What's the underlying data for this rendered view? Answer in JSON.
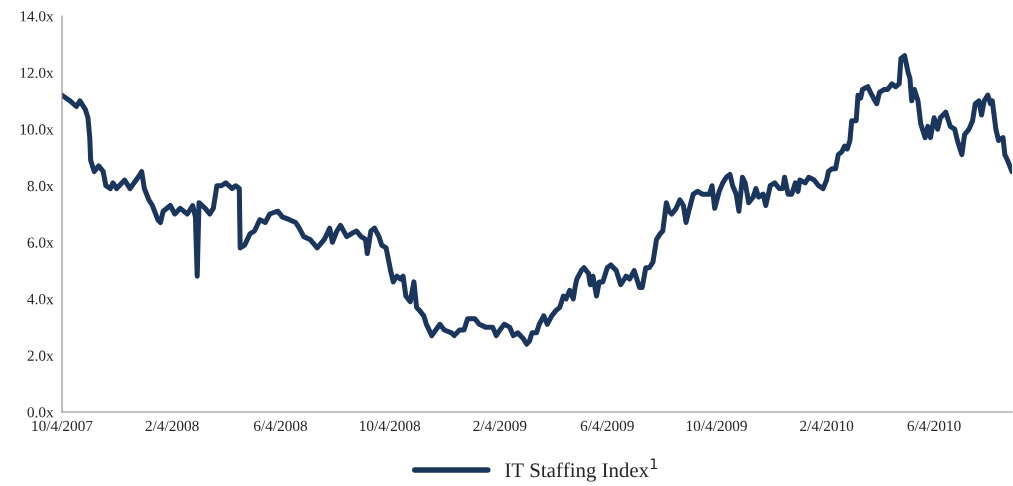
{
  "chart_data": {
    "type": "line",
    "legend": "bottom",
    "grid": false,
    "marker": "none",
    "line_style": "solid",
    "xlim": [
      "2007-10-04",
      "2010-08-30"
    ],
    "xticks": [
      {
        "value": "2007-10-04",
        "label": "10/4/2007"
      },
      {
        "value": "2008-02-04",
        "label": "2/4/2008"
      },
      {
        "value": "2008-06-04",
        "label": "6/4/2008"
      },
      {
        "value": "2008-10-04",
        "label": "10/4/2008"
      },
      {
        "value": "2009-02-04",
        "label": "2/4/2009"
      },
      {
        "value": "2009-06-04",
        "label": "6/4/2009"
      },
      {
        "value": "2009-10-04",
        "label": "10/4/2009"
      },
      {
        "value": "2010-02-04",
        "label": "2/4/2010"
      },
      {
        "value": "2010-06-04",
        "label": "6/4/2010"
      }
    ],
    "ylim": [
      0,
      14
    ],
    "yticks": [
      {
        "value": 0,
        "label": "0.0x"
      },
      {
        "value": 2,
        "label": "2.0x"
      },
      {
        "value": 4,
        "label": "4.0x"
      },
      {
        "value": 6,
        "label": "6.0x"
      },
      {
        "value": 8,
        "label": "8.0x"
      },
      {
        "value": 10,
        "label": "10.0x"
      },
      {
        "value": 12,
        "label": "12.0x"
      },
      {
        "value": 14,
        "label": "14.0x"
      }
    ],
    "series": [
      {
        "name": "IT Staffing Index$^{1}$",
        "color": "#1b365d",
        "x": [
          "2007-10-04",
          "2007-10-13",
          "2007-10-20",
          "2007-10-24",
          "2007-10-30",
          "2007-11-02",
          "2007-11-04",
          "2007-11-05",
          "2007-11-09",
          "2007-11-14",
          "2007-11-19",
          "2007-11-22",
          "2007-11-27",
          "2007-11-30",
          "2007-12-04",
          "2007-12-13",
          "2007-12-19",
          "2007-12-28",
          "2008-01-01",
          "2008-01-04",
          "2008-01-09",
          "2008-01-13",
          "2008-01-19",
          "2008-01-22",
          "2008-01-25",
          "2008-02-02",
          "2008-02-07",
          "2008-02-13",
          "2008-02-21",
          "2008-02-27",
          "2008-03-01",
          "2008-03-03",
          "2008-03-05",
          "2008-03-12",
          "2008-03-17",
          "2008-03-21",
          "2008-03-25",
          "2008-03-30",
          "2008-04-04",
          "2008-04-11",
          "2008-04-15",
          "2008-04-19",
          "2008-04-20",
          "2008-04-25",
          "2008-05-01",
          "2008-05-06",
          "2008-05-12",
          "2008-05-18",
          "2008-05-23",
          "2008-06-01",
          "2008-06-06",
          "2008-06-14",
          "2008-06-21",
          "2008-06-25",
          "2008-06-30",
          "2008-07-07",
          "2008-07-15",
          "2008-07-23",
          "2008-07-29",
          "2008-08-01",
          "2008-08-06",
          "2008-08-10",
          "2008-08-17",
          "2008-08-22",
          "2008-08-28",
          "2008-09-02",
          "2008-09-07",
          "2008-09-09",
          "2008-09-13",
          "2008-09-17",
          "2008-09-22",
          "2008-09-25",
          "2008-09-30",
          "2008-10-05",
          "2008-10-08",
          "2008-10-12",
          "2008-10-16",
          "2008-10-19",
          "2008-10-22",
          "2008-10-27",
          "2008-10-31",
          "2008-11-03",
          "2008-11-06",
          "2008-11-11",
          "2008-11-14",
          "2008-11-20",
          "2008-11-29",
          "2008-12-04",
          "2008-12-12",
          "2008-12-15",
          "2008-12-21",
          "2008-12-26",
          "2008-12-30",
          "2009-01-07",
          "2009-01-12",
          "2009-01-19",
          "2009-01-27",
          "2009-01-31",
          "2009-02-04",
          "2009-02-09",
          "2009-02-15",
          "2009-02-19",
          "2009-02-24",
          "2009-03-02",
          "2009-03-06",
          "2009-03-09",
          "2009-03-12",
          "2009-03-17",
          "2009-03-20",
          "2009-03-25",
          "2009-03-29",
          "2009-04-03",
          "2009-04-08",
          "2009-04-12",
          "2009-04-16",
          "2009-04-19",
          "2009-04-23",
          "2009-04-27",
          "2009-04-29",
          "2009-05-01",
          "2009-05-06",
          "2009-05-09",
          "2009-05-14",
          "2009-05-16",
          "2009-05-19",
          "2009-05-23",
          "2009-05-26",
          "2009-05-30",
          "2009-06-04",
          "2009-06-08",
          "2009-06-14",
          "2009-06-19",
          "2009-06-25",
          "2009-06-29",
          "2009-07-04",
          "2009-07-10",
          "2009-07-13",
          "2009-07-17",
          "2009-07-21",
          "2009-07-25",
          "2009-07-29",
          "2009-08-02",
          "2009-08-05",
          "2009-08-09",
          "2009-08-12",
          "2009-08-15",
          "2009-08-20",
          "2009-08-24",
          "2009-08-28",
          "2009-08-31",
          "2009-09-03",
          "2009-09-08",
          "2009-09-13",
          "2009-09-18",
          "2009-09-26",
          "2009-09-29",
          "2009-10-02",
          "2009-10-07",
          "2009-10-11",
          "2009-10-15",
          "2009-10-19",
          "2009-10-22",
          "2009-10-26",
          "2009-10-29",
          "2009-11-02",
          "2009-11-05",
          "2009-11-09",
          "2009-11-14",
          "2009-11-17",
          "2009-11-20",
          "2009-11-25",
          "2009-11-28",
          "2009-12-03",
          "2009-12-08",
          "2009-12-13",
          "2009-12-17",
          "2009-12-19",
          "2009-12-23",
          "2009-12-27",
          "2009-12-31",
          "2010-01-03",
          "2010-01-05",
          "2010-01-11",
          "2010-01-15",
          "2010-01-21",
          "2010-01-26",
          "2010-01-31",
          "2010-02-04",
          "2010-02-06",
          "2010-02-10",
          "2010-02-14",
          "2010-02-17",
          "2010-02-21",
          "2010-02-24",
          "2010-02-27",
          "2010-03-02",
          "2010-03-04",
          "2010-03-09",
          "2010-03-11",
          "2010-03-14",
          "2010-03-16",
          "2010-03-22",
          "2010-03-25",
          "2010-03-30",
          "2010-04-01",
          "2010-04-04",
          "2010-04-09",
          "2010-04-13",
          "2010-04-18",
          "2010-04-22",
          "2010-04-26",
          "2010-04-28",
          "2010-05-02",
          "2010-05-06",
          "2010-05-08",
          "2010-05-10",
          "2010-05-13",
          "2010-05-17",
          "2010-05-20",
          "2010-05-22",
          "2010-05-25",
          "2010-05-28",
          "2010-05-31",
          "2010-06-04",
          "2010-06-08",
          "2010-06-11",
          "2010-06-17",
          "2010-06-22",
          "2010-06-27",
          "2010-06-30",
          "2010-07-05",
          "2010-07-08",
          "2010-07-13",
          "2010-07-17",
          "2010-07-20",
          "2010-07-24",
          "2010-07-27",
          "2010-07-30",
          "2010-08-03",
          "2010-08-06",
          "2010-08-08",
          "2010-08-12",
          "2010-08-15",
          "2010-08-20",
          "2010-08-22",
          "2010-08-25",
          "2010-08-30"
        ],
        "values": [
          11.2,
          11.0,
          10.8,
          11.0,
          10.7,
          10.4,
          9.7,
          8.9,
          8.5,
          8.7,
          8.5,
          8.0,
          7.9,
          8.1,
          7.9,
          8.2,
          7.9,
          8.3,
          8.5,
          7.9,
          7.5,
          7.3,
          6.8,
          6.7,
          7.1,
          7.3,
          7.0,
          7.2,
          7.0,
          7.3,
          6.9,
          4.8,
          7.4,
          7.2,
          7.0,
          7.2,
          8.0,
          8.0,
          8.1,
          7.9,
          8.0,
          7.9,
          5.8,
          5.9,
          6.3,
          6.4,
          6.8,
          6.7,
          7.0,
          7.1,
          6.9,
          6.8,
          6.7,
          6.5,
          6.2,
          6.1,
          5.8,
          6.1,
          6.5,
          6.0,
          6.4,
          6.6,
          6.2,
          6.3,
          6.4,
          6.2,
          6.1,
          5.6,
          6.4,
          6.5,
          6.2,
          5.9,
          5.8,
          5.0,
          4.6,
          4.8,
          4.7,
          4.8,
          4.1,
          3.9,
          4.6,
          3.7,
          3.6,
          3.4,
          3.1,
          2.7,
          3.1,
          2.9,
          2.8,
          2.7,
          2.9,
          2.9,
          3.3,
          3.3,
          3.1,
          3.0,
          3.0,
          2.7,
          2.9,
          3.1,
          3.0,
          2.7,
          2.8,
          2.6,
          2.4,
          2.5,
          2.8,
          2.8,
          3.1,
          3.4,
          3.1,
          3.4,
          3.6,
          3.7,
          4.1,
          4.0,
          4.3,
          4.0,
          4.4,
          4.7,
          5.0,
          5.1,
          4.9,
          4.5,
          4.8,
          4.1,
          4.6,
          4.6,
          5.1,
          5.2,
          5.0,
          4.5,
          4.8,
          4.7,
          5.0,
          4.4,
          4.4,
          5.1,
          5.1,
          5.3,
          6.1,
          6.3,
          6.4,
          7.4,
          7.1,
          7.0,
          7.2,
          7.5,
          7.3,
          6.7,
          7.1,
          7.7,
          7.8,
          7.7,
          7.7,
          8.0,
          7.2,
          7.8,
          8.1,
          8.3,
          8.4,
          8.0,
          7.7,
          7.1,
          8.3,
          8.1,
          7.4,
          7.6,
          7.9,
          7.6,
          7.7,
          7.3,
          8.0,
          8.1,
          7.9,
          7.9,
          8.3,
          7.7,
          7.7,
          8.1,
          7.8,
          8.2,
          8.1,
          8.3,
          8.2,
          8.0,
          7.9,
          8.2,
          8.5,
          8.6,
          8.6,
          9.1,
          9.2,
          9.4,
          9.3,
          9.6,
          10.3,
          10.3,
          11.2,
          11.1,
          11.4,
          11.5,
          11.3,
          11.0,
          10.9,
          11.3,
          11.4,
          11.4,
          11.6,
          11.5,
          11.6,
          12.5,
          12.6,
          12.0,
          11.8,
          11.0,
          11.4,
          11.0,
          10.2,
          10.0,
          9.7,
          10.1,
          9.7,
          10.4,
          10.0,
          10.4,
          10.6,
          10.1,
          10.0,
          9.6,
          9.1,
          9.8,
          10.0,
          10.3,
          10.9,
          11.0,
          10.5,
          11.0,
          11.2,
          10.9,
          11.0,
          10.0,
          9.6,
          9.7,
          9.1,
          8.9,
          8.5
        ]
      }
    ]
  }
}
